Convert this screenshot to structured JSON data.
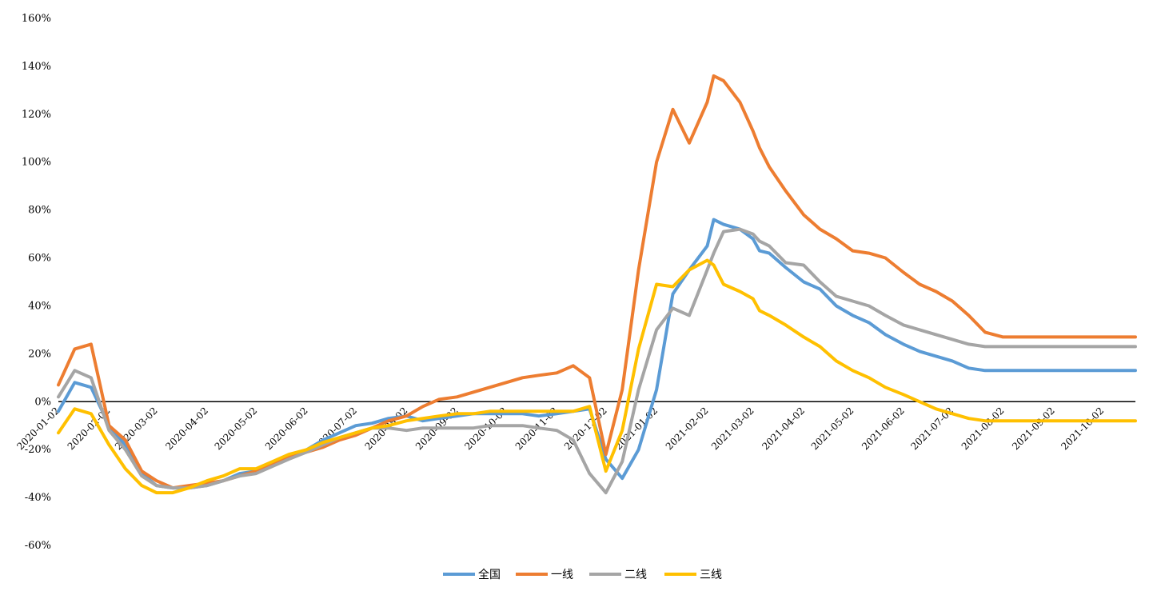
{
  "chart_data": {
    "type": "line",
    "title": "",
    "xlabel": "",
    "ylabel": "",
    "y_unit": "%",
    "ylim": [
      -60,
      160
    ],
    "yticks": [
      -60,
      -40,
      -20,
      0,
      20,
      40,
      60,
      80,
      100,
      120,
      140,
      160
    ],
    "ytick_labels": [
      "-60%",
      "-40%",
      "-20%",
      "0%",
      "20%",
      "40%",
      "60%",
      "80%",
      "100%",
      "120%",
      "140%",
      "160%"
    ],
    "xtick_labels": [
      "2020-01-02",
      "2020-02-02",
      "2020-03-02",
      "2020-04-02",
      "2020-05-02",
      "2020-06-02",
      "2020-07-02",
      "2020-08-02",
      "2020-09-02",
      "2020-10-02",
      "2020-11-02",
      "2020-12-02",
      "2021-01-02",
      "2021-02-02",
      "2021-03-02",
      "2021-04-02",
      "2021-05-02",
      "2021-06-02",
      "2021-07-02",
      "2021-08-02",
      "2021-09-02",
      "2021-10-02"
    ],
    "x_dates": [
      "2020-01-02",
      "2020-01-12",
      "2020-01-22",
      "2020-02-02",
      "2020-02-12",
      "2020-02-22",
      "2020-03-02",
      "2020-03-12",
      "2020-03-22",
      "2020-04-02",
      "2020-04-12",
      "2020-04-22",
      "2020-05-02",
      "2020-05-12",
      "2020-05-22",
      "2020-06-02",
      "2020-06-12",
      "2020-06-22",
      "2020-07-02",
      "2020-07-12",
      "2020-07-22",
      "2020-08-02",
      "2020-08-12",
      "2020-08-22",
      "2020-09-02",
      "2020-09-12",
      "2020-09-22",
      "2020-10-02",
      "2020-10-12",
      "2020-10-22",
      "2020-11-02",
      "2020-11-12",
      "2020-11-22",
      "2020-12-02",
      "2020-12-12",
      "2020-12-22",
      "2021-01-02",
      "2021-01-12",
      "2021-01-22",
      "2021-02-02",
      "2021-02-06",
      "2021-02-12",
      "2021-02-22",
      "2021-03-02",
      "2021-03-06",
      "2021-03-12",
      "2021-03-22",
      "2021-04-02",
      "2021-04-12",
      "2021-04-22",
      "2021-05-02",
      "2021-05-12",
      "2021-05-22",
      "2021-06-02",
      "2021-06-12",
      "2021-06-22",
      "2021-07-02",
      "2021-07-12",
      "2021-07-22",
      "2021-08-02",
      "2021-08-12",
      "2021-08-22",
      "2021-09-02",
      "2021-09-12",
      "2021-09-22",
      "2021-10-02",
      "2021-10-12",
      "2021-10-22"
    ],
    "grid": false,
    "zero_line": true,
    "legend_position": "bottom",
    "series": [
      {
        "name": "全国",
        "color": "#5B9BD5",
        "values": [
          -4,
          8,
          6,
          -10,
          -18,
          -30,
          -35,
          -36,
          -36,
          -35,
          -33,
          -30,
          -29,
          -26,
          -23,
          -20,
          -16,
          -13,
          -10,
          -9,
          -7,
          -6,
          -8,
          -7,
          -6,
          -5,
          -5,
          -5,
          -5,
          -6,
          -5,
          -4,
          -3,
          -24,
          -32,
          -20,
          5,
          45,
          55,
          65,
          76,
          74,
          72,
          68,
          63,
          62,
          56,
          50,
          47,
          40,
          36,
          33,
          28,
          24,
          21,
          19,
          17,
          14,
          13,
          13,
          13,
          13,
          13,
          13,
          13,
          13,
          13,
          13
        ]
      },
      {
        "name": "一线",
        "color": "#ED7D31",
        "values": [
          7,
          22,
          24,
          -10,
          -16,
          -29,
          -33,
          -36,
          -35,
          -34,
          -33,
          -31,
          -29,
          -26,
          -23,
          -21,
          -19,
          -16,
          -14,
          -11,
          -8,
          -6,
          -2,
          1,
          2,
          4,
          6,
          8,
          10,
          11,
          12,
          15,
          10,
          -22,
          5,
          55,
          100,
          122,
          108,
          125,
          136,
          134,
          125,
          113,
          106,
          98,
          88,
          78,
          72,
          68,
          63,
          62,
          60,
          54,
          49,
          46,
          42,
          36,
          29,
          27,
          27,
          27,
          27,
          27,
          27,
          27,
          27,
          27
        ]
      },
      {
        "name": "二线",
        "color": "#A5A5A5",
        "values": [
          2,
          13,
          10,
          -12,
          -20,
          -31,
          -35,
          -36,
          -36,
          -35,
          -33,
          -31,
          -30,
          -27,
          -24,
          -21,
          -18,
          -15,
          -13,
          -11,
          -11,
          -12,
          -11,
          -11,
          -11,
          -11,
          -10,
          -10,
          -10,
          -11,
          -12,
          -16,
          -30,
          -38,
          -25,
          5,
          30,
          39,
          36,
          55,
          62,
          71,
          72,
          70,
          67,
          65,
          58,
          57,
          50,
          44,
          42,
          40,
          36,
          32,
          30,
          28,
          26,
          24,
          23,
          23,
          23,
          23,
          23,
          23,
          23,
          23,
          23,
          23
        ]
      },
      {
        "name": "三线",
        "color": "#FFC000",
        "values": [
          -13,
          -3,
          -5,
          -18,
          -28,
          -35,
          -38,
          -38,
          -36,
          -33,
          -31,
          -28,
          -28,
          -25,
          -22,
          -20,
          -17,
          -15,
          -13,
          -11,
          -10,
          -8,
          -7,
          -6,
          -5,
          -5,
          -4,
          -4,
          -4,
          -4,
          -4,
          -4,
          -2,
          -29,
          -12,
          22,
          49,
          48,
          55,
          59,
          57,
          49,
          46,
          43,
          38,
          36,
          32,
          27,
          23,
          17,
          13,
          10,
          6,
          3,
          0,
          -3,
          -5,
          -7,
          -8,
          -8,
          -8,
          -8,
          -8,
          -8,
          -8,
          -8,
          -8,
          -8
        ]
      }
    ]
  }
}
